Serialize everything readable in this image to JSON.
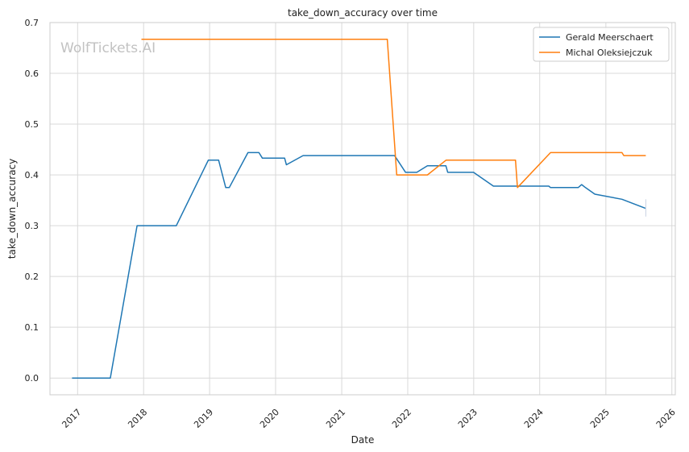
{
  "chart_data": {
    "type": "line",
    "title": "take_down_accuracy over time",
    "xlabel": "Date",
    "ylabel": "take_down_accuracy",
    "watermark": "WolfTickets.AI",
    "grid": true,
    "legend_position": "top-right",
    "xlim": [
      "2016-08-01",
      "2026-01-20"
    ],
    "ylim": [
      -0.033,
      0.7
    ],
    "x_ticks": [
      "2017",
      "2018",
      "2019",
      "2020",
      "2021",
      "2022",
      "2023",
      "2024",
      "2025",
      "2026"
    ],
    "y_ticks": [
      "0.0",
      "0.1",
      "0.2",
      "0.3",
      "0.4",
      "0.5",
      "0.6",
      "0.7"
    ],
    "series": [
      {
        "name": "Gerald Meerschaert",
        "color": "#1f77b4",
        "points": [
          [
            "2016-12-01",
            0.0
          ],
          [
            "2017-07-01",
            0.0
          ],
          [
            "2017-11-26",
            0.3
          ],
          [
            "2018-07-01",
            0.3
          ],
          [
            "2018-12-25",
            0.429
          ],
          [
            "2019-02-20",
            0.429
          ],
          [
            "2019-03-31",
            0.375
          ],
          [
            "2019-04-20",
            0.375
          ],
          [
            "2019-08-01",
            0.444
          ],
          [
            "2019-10-01",
            0.444
          ],
          [
            "2019-10-20",
            0.433
          ],
          [
            "2020-02-20",
            0.433
          ],
          [
            "2020-03-01",
            0.42
          ],
          [
            "2020-06-01",
            0.438
          ],
          [
            "2021-10-20",
            0.438
          ],
          [
            "2021-12-20",
            0.405
          ],
          [
            "2022-02-20",
            0.405
          ],
          [
            "2022-04-20",
            0.418
          ],
          [
            "2022-07-31",
            0.418
          ],
          [
            "2022-08-10",
            0.405
          ],
          [
            "2022-12-31",
            0.405
          ],
          [
            "2023-04-20",
            0.378
          ],
          [
            "2024-02-20",
            0.378
          ],
          [
            "2024-03-01",
            0.375
          ],
          [
            "2024-08-01",
            0.375
          ],
          [
            "2024-08-20",
            0.381
          ],
          [
            "2024-09-10",
            0.375
          ],
          [
            "2024-11-01",
            0.362
          ],
          [
            "2025-03-31",
            0.352
          ],
          [
            "2025-08-10",
            0.334
          ]
        ],
        "error_bar": {
          "x": "2025-08-10",
          "low": 0.318,
          "high": 0.352
        }
      },
      {
        "name": "Michal Oleksiejczuk",
        "color": "#ff7f0e",
        "points": [
          [
            "2017-12-20",
            0.667
          ],
          [
            "2021-09-10",
            0.667
          ],
          [
            "2021-11-01",
            0.4
          ],
          [
            "2022-04-20",
            0.4
          ],
          [
            "2022-08-01",
            0.429
          ],
          [
            "2023-08-20",
            0.429
          ],
          [
            "2023-08-31",
            0.375
          ],
          [
            "2024-03-01",
            0.444
          ],
          [
            "2025-03-31",
            0.444
          ],
          [
            "2025-04-10",
            0.438
          ],
          [
            "2025-08-10",
            0.438
          ]
        ]
      }
    ]
  }
}
